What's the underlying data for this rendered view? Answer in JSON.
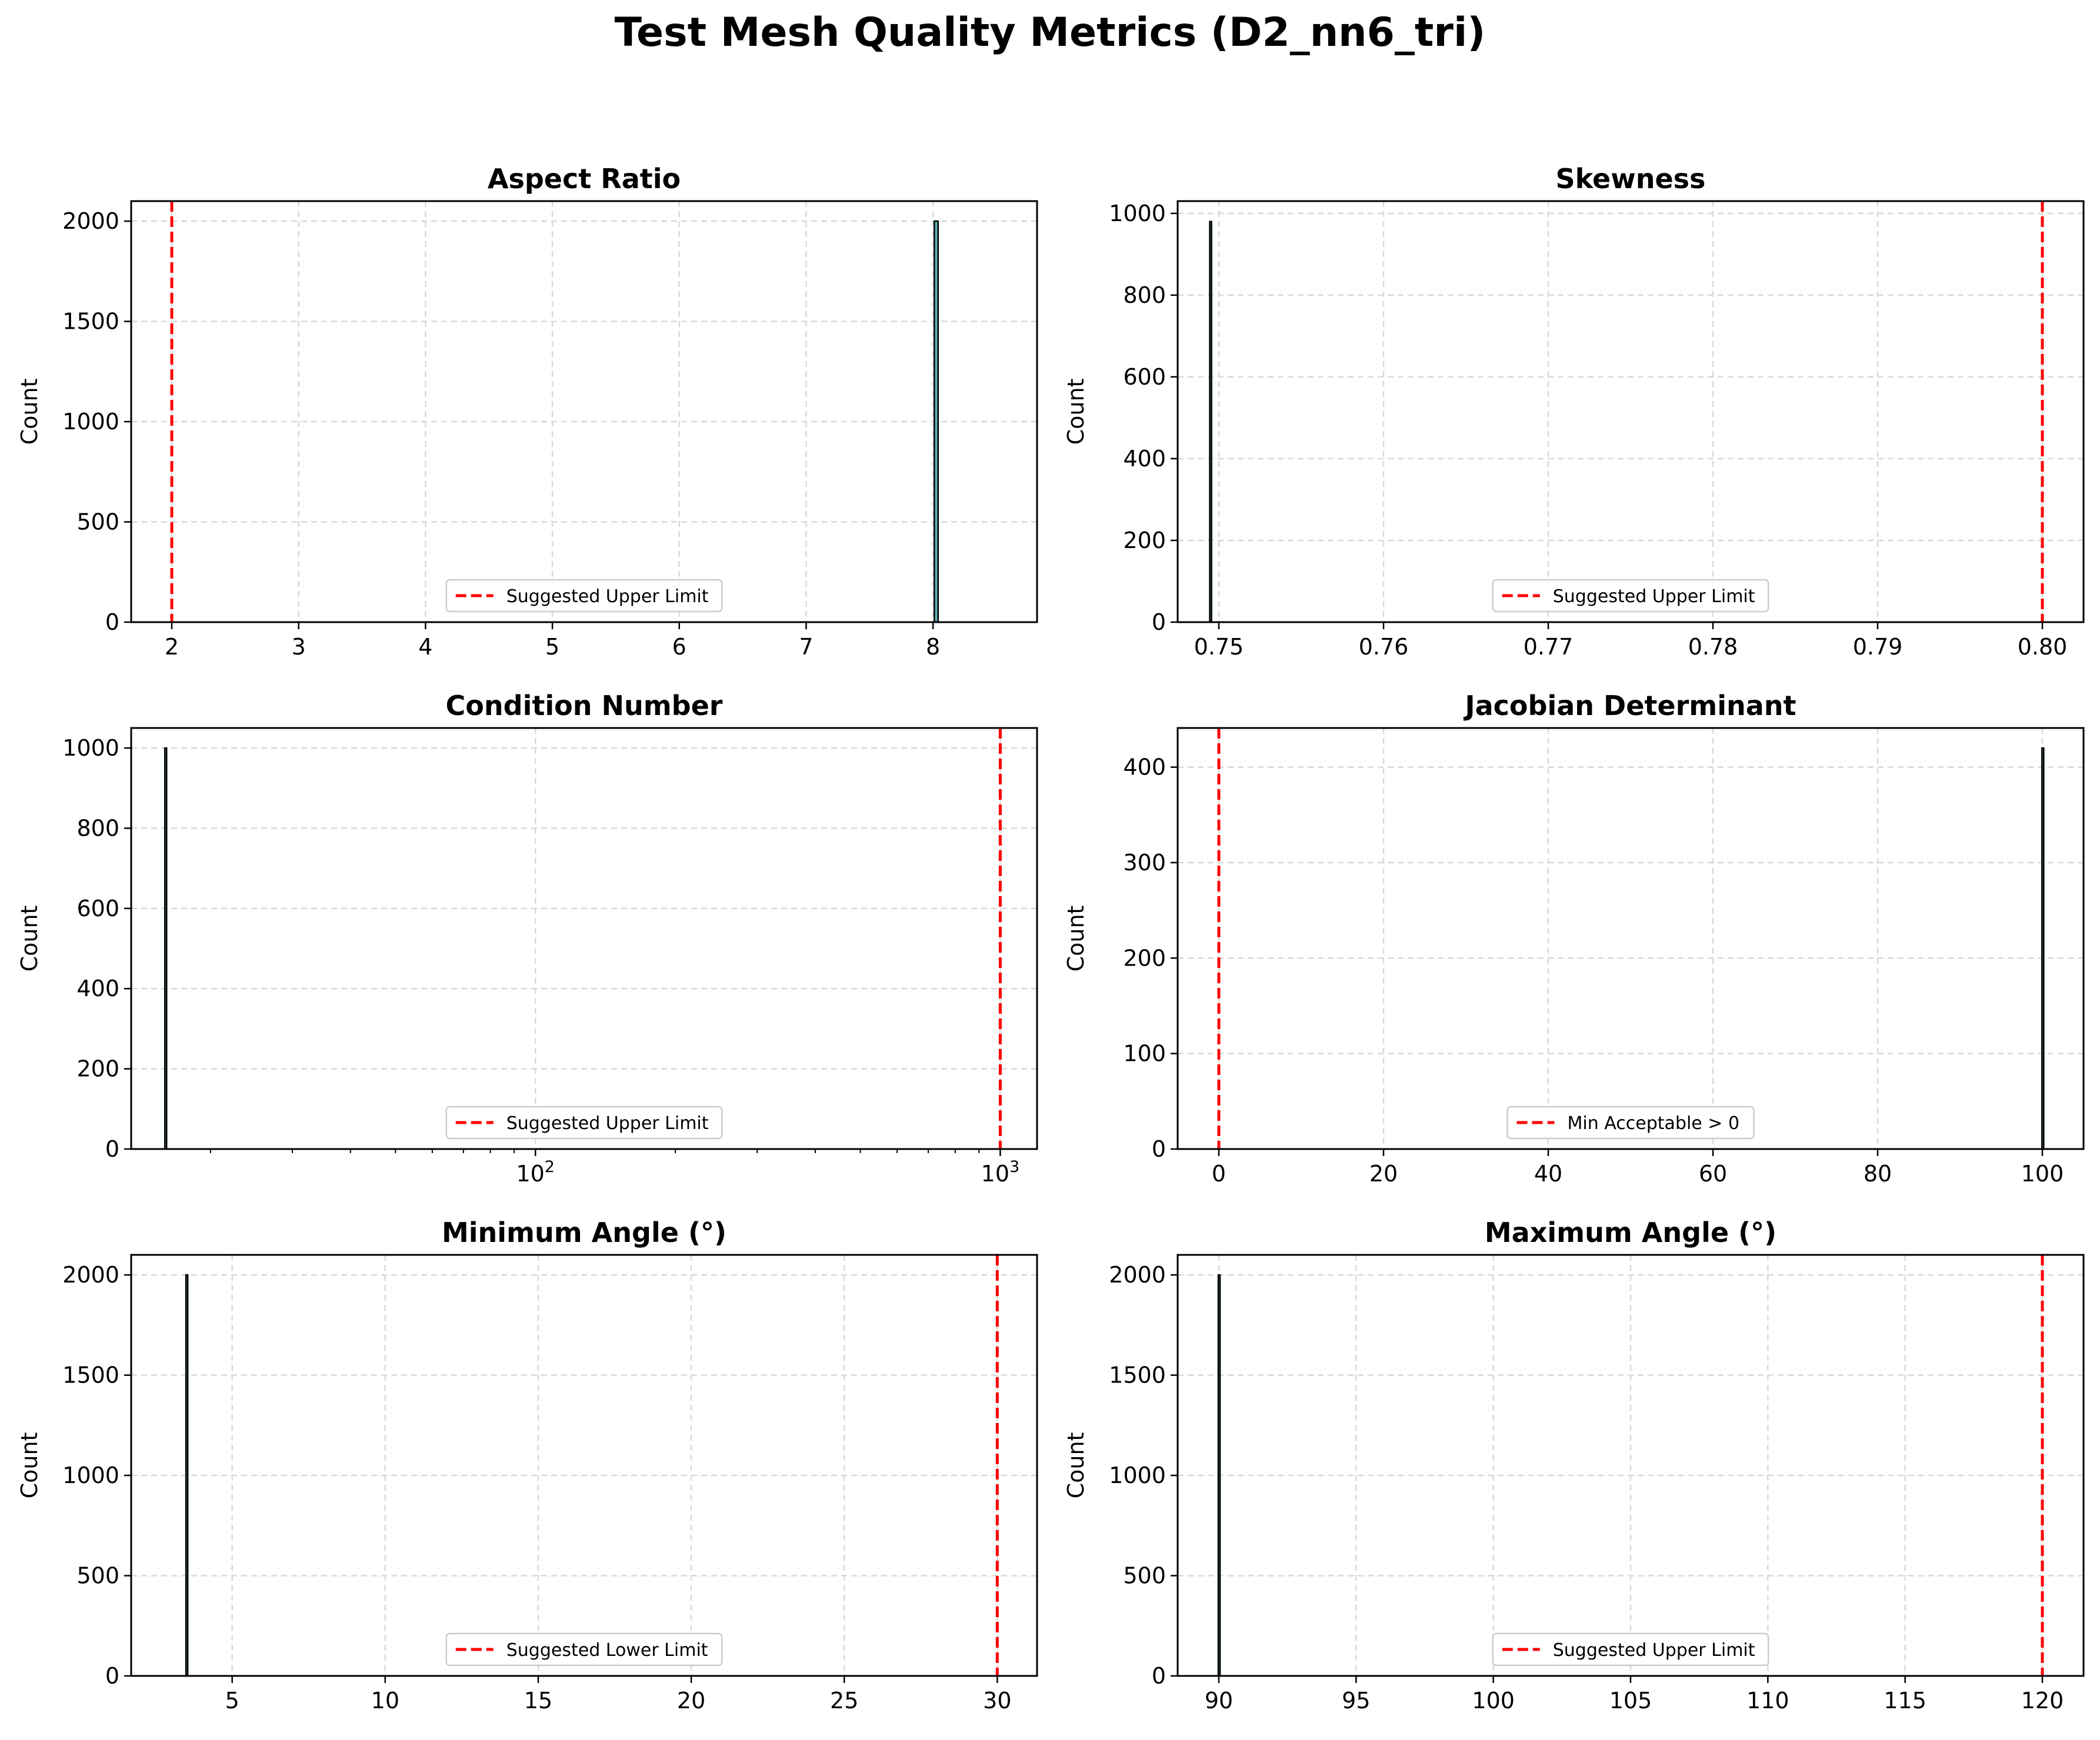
{
  "figure": {
    "title": "Test Mesh Quality Metrics (D2_nn6_tri)"
  },
  "colors": {
    "bar_fill": "#5fb3b3",
    "bar_edge": "#000000",
    "threshold": "#ff0000",
    "grid": "#d9d9d9"
  },
  "chart_data": [
    {
      "type": "bar",
      "title": "Aspect Ratio",
      "ylabel": "Count",
      "xlabel": "",
      "x_scale": "linear",
      "xlim": [
        1.68,
        8.82
      ],
      "ylim": [
        0,
        2100
      ],
      "xticks": [
        2,
        3,
        4,
        5,
        6,
        7,
        8
      ],
      "xtick_labels": [
        "2",
        "3",
        "4",
        "5",
        "6",
        "7",
        "8"
      ],
      "yticks": [
        0,
        500,
        1000,
        1500,
        2000
      ],
      "ytick_labels": [
        "0",
        "500",
        "1000",
        "1500",
        "2000"
      ],
      "bins": [
        {
          "x0": 8.01,
          "x1": 8.04,
          "count": 2000
        }
      ],
      "threshold": {
        "x": 2,
        "label": "Suggested Upper Limit"
      },
      "grid": true,
      "legend_position": "lower center"
    },
    {
      "type": "bar",
      "title": "Skewness",
      "ylabel": "Count",
      "xlabel": "",
      "x_scale": "linear",
      "xlim": [
        0.7475,
        0.8025
      ],
      "ylim": [
        0,
        1030
      ],
      "xticks": [
        0.75,
        0.76,
        0.77,
        0.78,
        0.79,
        0.8
      ],
      "xtick_labels": [
        "0.75",
        "0.76",
        "0.77",
        "0.78",
        "0.79",
        "0.80"
      ],
      "yticks": [
        0,
        200,
        400,
        600,
        800,
        1000
      ],
      "ytick_labels": [
        "0",
        "200",
        "400",
        "600",
        "800",
        "1000"
      ],
      "bins": [
        {
          "x0": 0.74945,
          "x1": 0.74955,
          "count": 980
        }
      ],
      "threshold": {
        "x": 0.8,
        "label": "Suggested Upper Limit"
      },
      "grid": true,
      "legend_position": "lower center"
    },
    {
      "type": "bar",
      "title": "Condition Number",
      "ylabel": "Count",
      "xlabel": "",
      "x_scale": "log",
      "xlim": [
        13.5,
        1200
      ],
      "ylim": [
        0,
        1050
      ],
      "xticks": [
        100,
        1000
      ],
      "xtick_labels": [
        "10",
        "10"
      ],
      "xtick_exponents": [
        "2",
        "3"
      ],
      "x_minor_ticks": [
        20,
        30,
        40,
        50,
        60,
        70,
        80,
        90,
        200,
        300,
        400,
        500,
        600,
        700,
        800,
        900
      ],
      "yticks": [
        0,
        200,
        400,
        600,
        800,
        1000
      ],
      "ytick_labels": [
        "0",
        "200",
        "400",
        "600",
        "800",
        "1000"
      ],
      "bins": [
        {
          "x0": 15.95,
          "x1": 16.05,
          "count": 1000
        }
      ],
      "threshold": {
        "x": 1000,
        "label": "Suggested Upper Limit"
      },
      "grid": true,
      "legend_position": "lower center"
    },
    {
      "type": "bar",
      "title": "Jacobian Determinant",
      "ylabel": "Count",
      "xlabel": "",
      "x_scale": "linear",
      "xlim": [
        -5,
        105
      ],
      "ylim": [
        0,
        441
      ],
      "xticks": [
        0,
        20,
        40,
        60,
        80,
        100
      ],
      "xtick_labels": [
        "0",
        "20",
        "40",
        "60",
        "80",
        "100"
      ],
      "yticks": [
        0,
        100,
        200,
        300,
        400
      ],
      "ytick_labels": [
        "0",
        "100",
        "200",
        "300",
        "400"
      ],
      "bins": [
        {
          "x0": 99.95,
          "x1": 100.05,
          "count": 420
        }
      ],
      "threshold": {
        "x": 0,
        "label": "Min Acceptable > 0"
      },
      "grid": true,
      "legend_position": "lower center"
    },
    {
      "type": "bar",
      "title": "Minimum Angle (°)",
      "ylabel": "Count",
      "xlabel": "",
      "x_scale": "linear",
      "xlim": [
        1.7,
        31.3
      ],
      "ylim": [
        0,
        2100
      ],
      "xticks": [
        5,
        10,
        15,
        20,
        25,
        30
      ],
      "xtick_labels": [
        "5",
        "10",
        "15",
        "20",
        "25",
        "30"
      ],
      "yticks": [
        0,
        500,
        1000,
        1500,
        2000
      ],
      "ytick_labels": [
        "0",
        "500",
        "1000",
        "1500",
        "2000"
      ],
      "bins": [
        {
          "x0": 3.49,
          "x1": 3.53,
          "count": 2000
        }
      ],
      "threshold": {
        "x": 30,
        "label": "Suggested Lower Limit"
      },
      "grid": true,
      "legend_position": "lower center"
    },
    {
      "type": "bar",
      "title": "Maximum Angle (°)",
      "ylabel": "Count",
      "xlabel": "",
      "x_scale": "linear",
      "xlim": [
        88.5,
        121.5
      ],
      "ylim": [
        0,
        2100
      ],
      "xticks": [
        90,
        95,
        100,
        105,
        110,
        115,
        120
      ],
      "xtick_labels": [
        "90",
        "95",
        "100",
        "105",
        "110",
        "115",
        "120"
      ],
      "yticks": [
        0,
        500,
        1000,
        1500,
        2000
      ],
      "ytick_labels": [
        "0",
        "500",
        "1000",
        "1500",
        "2000"
      ],
      "bins": [
        {
          "x0": 89.98,
          "x1": 90.02,
          "count": 2000
        }
      ],
      "threshold": {
        "x": 120,
        "label": "Suggested Upper Limit"
      },
      "grid": true,
      "legend_position": "lower center"
    }
  ]
}
